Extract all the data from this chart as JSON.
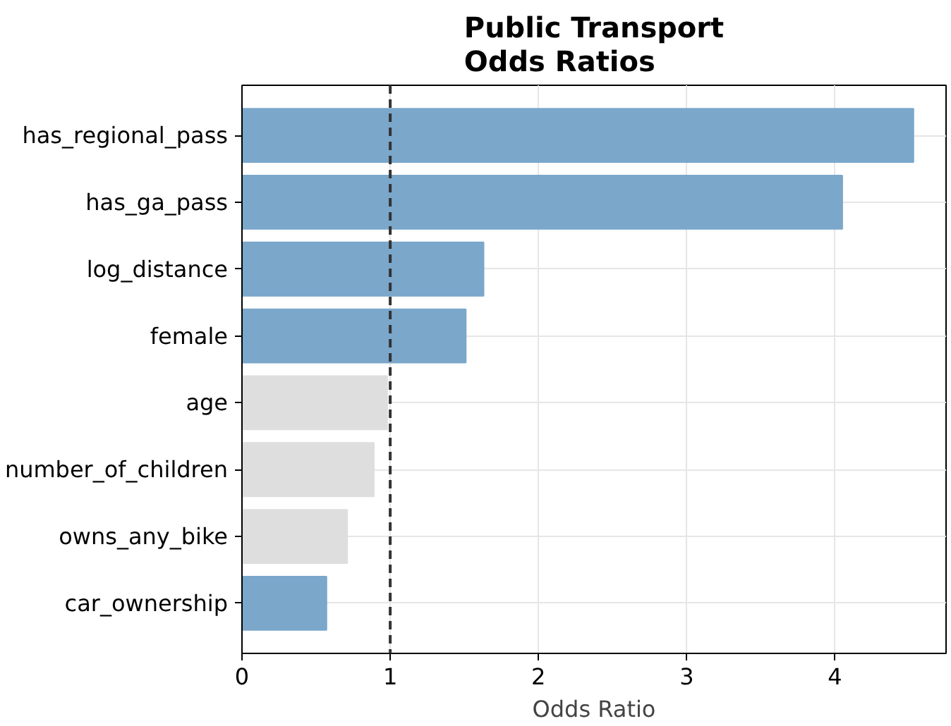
{
  "chart_data": {
    "type": "bar",
    "orientation": "horizontal",
    "title": "Public Transport\nOdds Ratios",
    "xlabel": "Odds Ratio",
    "categories": [
      "has_regional_pass",
      "has_ga_pass",
      "log_distance",
      "female",
      "age",
      "number_of_children",
      "owns_any_bike",
      "car_ownership"
    ],
    "values": [
      4.53,
      4.05,
      1.63,
      1.51,
      0.98,
      0.89,
      0.71,
      0.57
    ],
    "colors": [
      "#7ba7cb",
      "#7ba7cb",
      "#7ba7cb",
      "#7ba7cb",
      "#dedede",
      "#dedede",
      "#dedede",
      "#7ba7cb"
    ],
    "xlim": [
      0,
      4.75
    ],
    "xticks": [
      0,
      1,
      2,
      3,
      4
    ],
    "grid": true,
    "ref_lines": [
      {
        "axis": "x",
        "value": 1,
        "color": "#333333",
        "line_style": "dashed"
      }
    ]
  }
}
